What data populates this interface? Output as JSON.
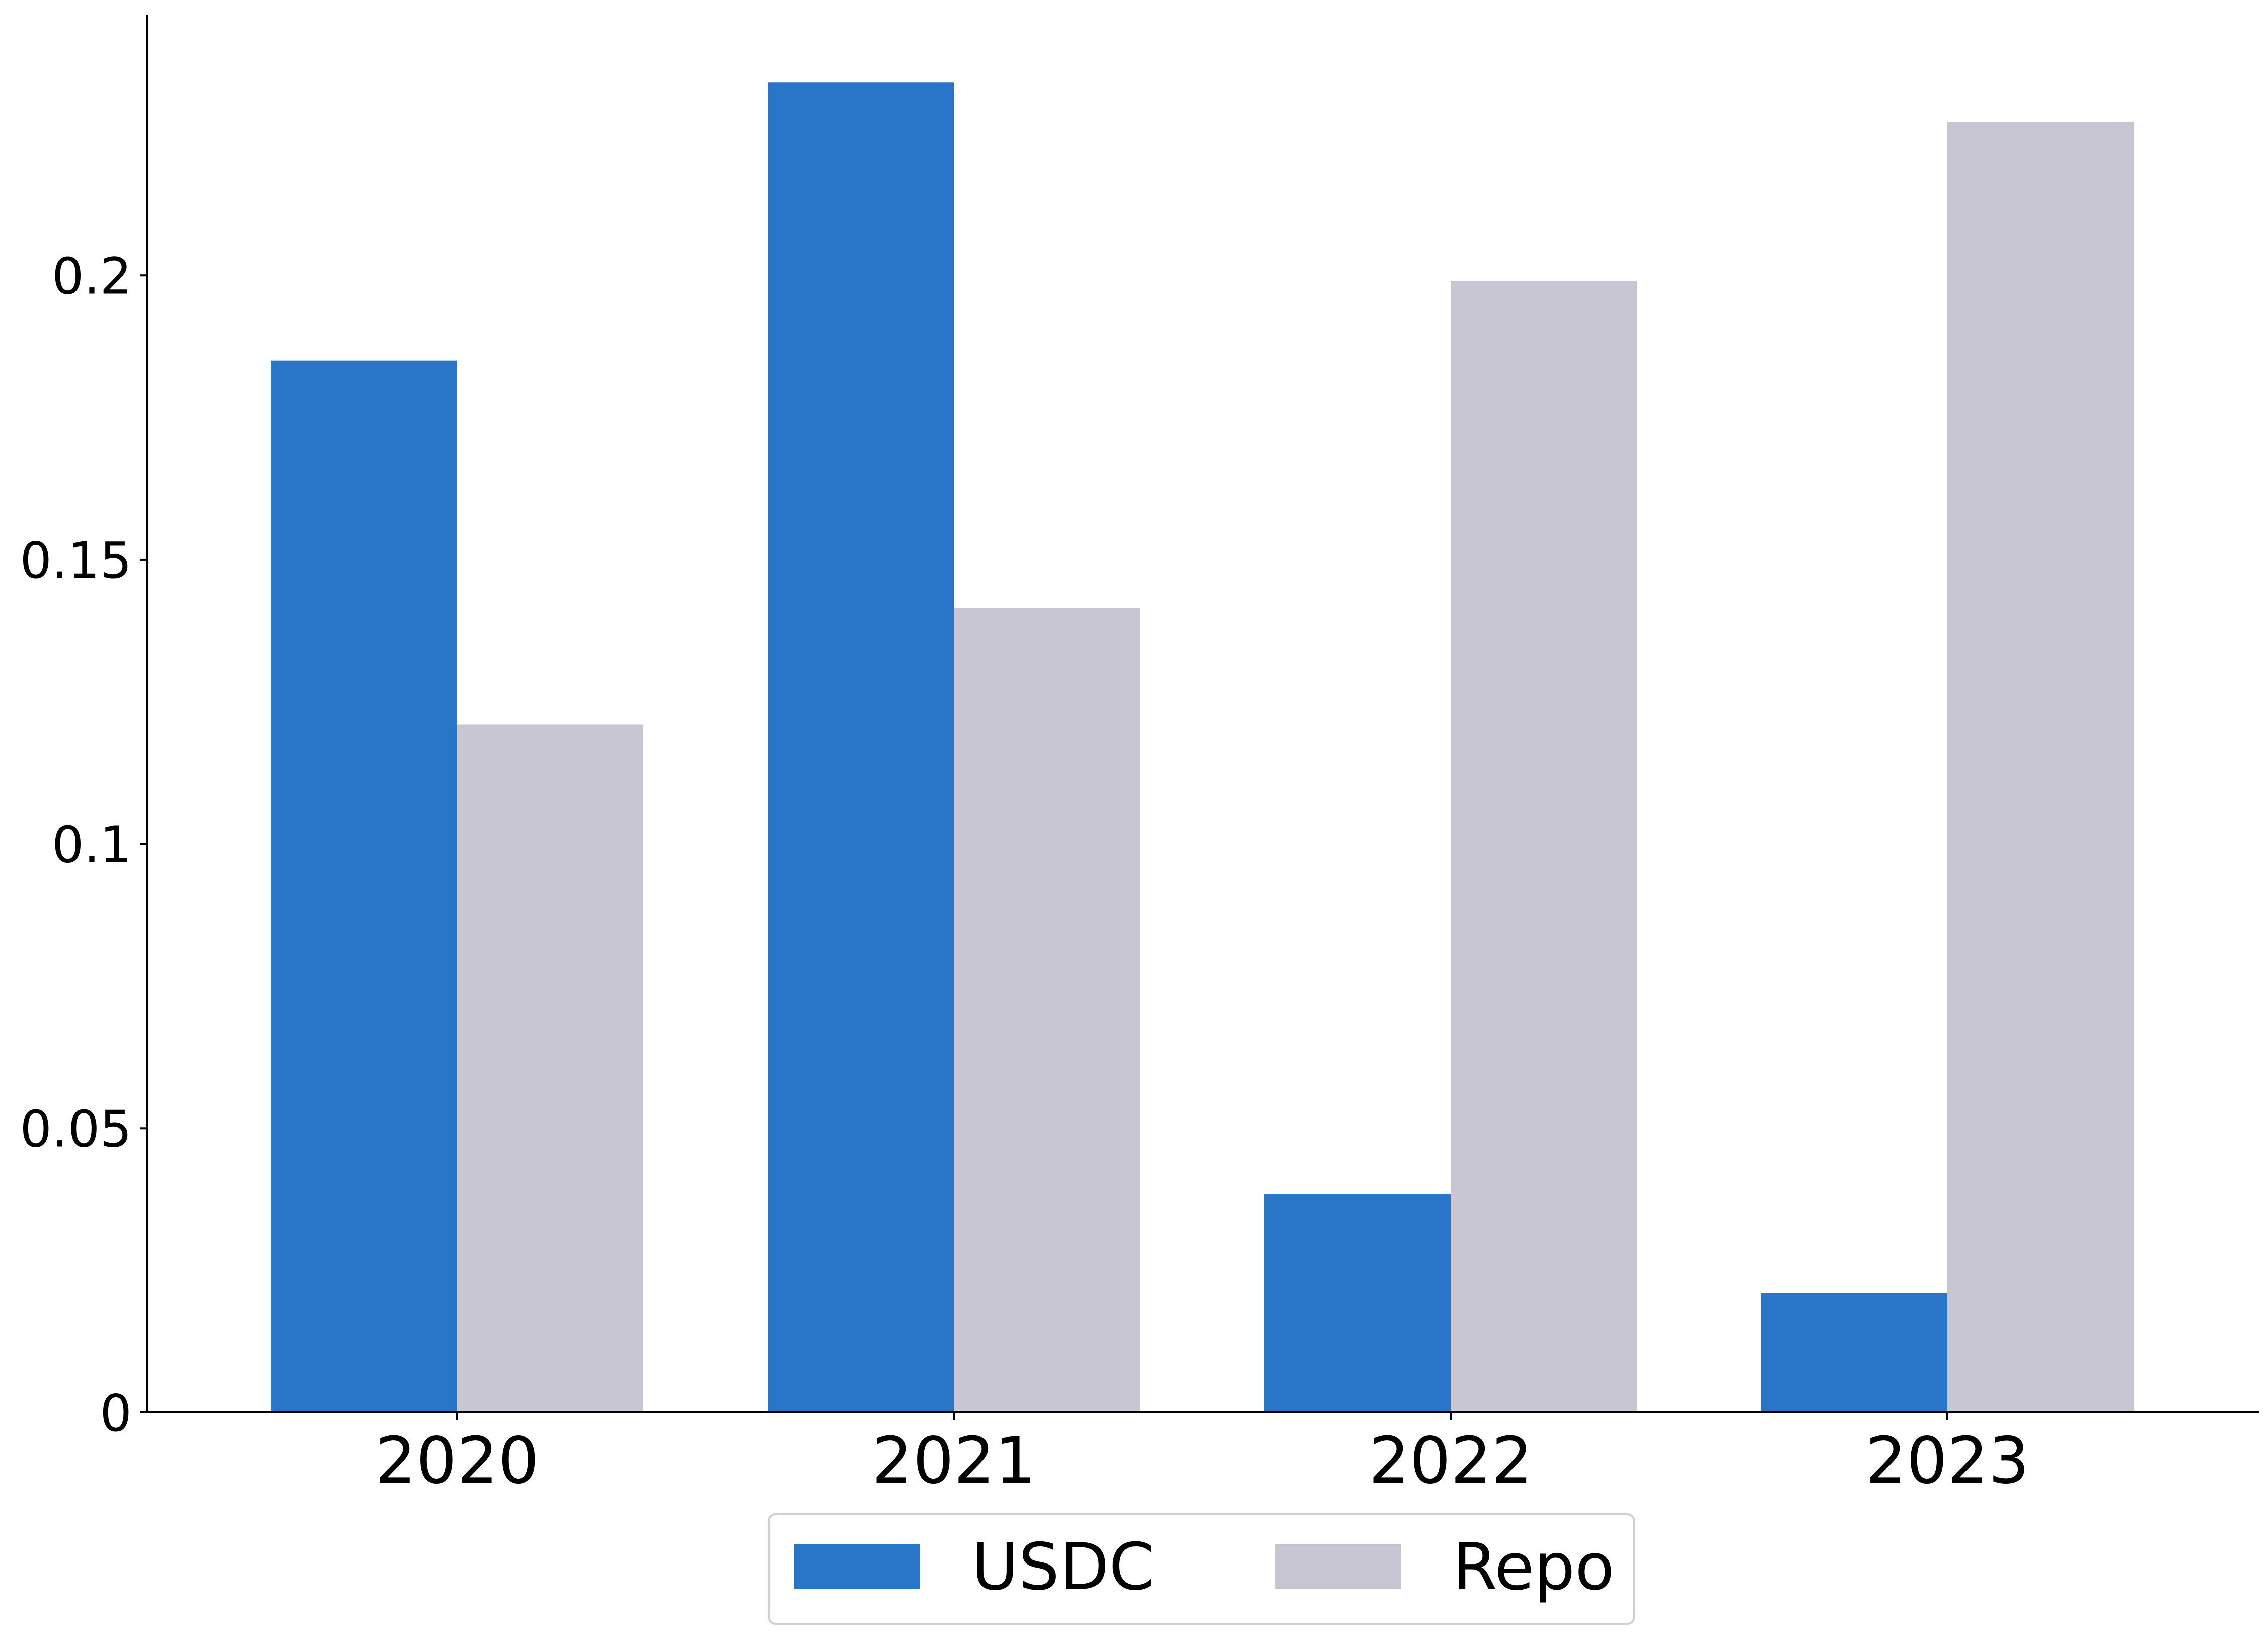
{
  "chart_data": {
    "type": "bar",
    "categories": [
      "2020",
      "2021",
      "2022",
      "2023"
    ],
    "series": [
      {
        "name": "USDC",
        "color": "#2976c9",
        "values": [
          0.185,
          0.234,
          0.0385,
          0.021
        ]
      },
      {
        "name": "Repo",
        "color": "#c8c6d2",
        "values": [
          0.121,
          0.1415,
          0.199,
          0.227
        ]
      }
    ],
    "title": "",
    "xlabel": "",
    "ylabel": "",
    "ylim": [
      0,
      0.2458
    ],
    "yticks": [
      {
        "value": 0,
        "label": "0"
      },
      {
        "value": 0.05,
        "label": "0.05"
      },
      {
        "value": 0.1,
        "label": "0.1"
      },
      {
        "value": 0.15,
        "label": "0.15"
      },
      {
        "value": 0.2,
        "label": "0.2"
      }
    ],
    "grid": false,
    "legend_position": "bottom-center",
    "spines": [
      "left",
      "bottom"
    ]
  }
}
